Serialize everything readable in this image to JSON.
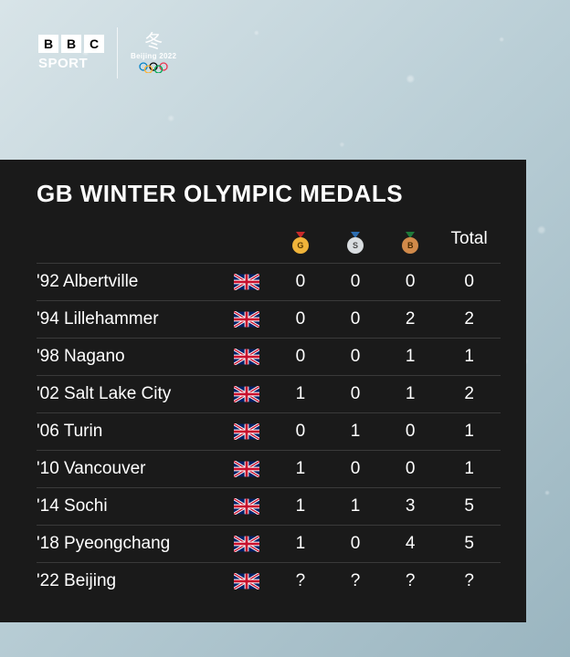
{
  "branding": {
    "bbc_letters": [
      "B",
      "B",
      "C"
    ],
    "sport_label": "SPORT",
    "event_label": "Beijing 2022",
    "rings_colors": [
      "#0081c8",
      "#fcb131",
      "#000000",
      "#00a651",
      "#ee334e"
    ]
  },
  "table": {
    "title": "GB WINTER OLYMPIC MEDALS",
    "columns": {
      "games": "",
      "flag": "",
      "gold": {
        "letter": "G",
        "ribbon_color": "#c92a2a",
        "disc_color": "#f0b43a",
        "text_color": "#5a3b00"
      },
      "silver": {
        "letter": "S",
        "ribbon_color": "#2b6cb0",
        "disc_color": "#d9dde0",
        "text_color": "#4a4a4a"
      },
      "bronze": {
        "letter": "B",
        "ribbon_color": "#1f7a3a",
        "disc_color": "#d18a4a",
        "text_color": "#4a2a00"
      },
      "total": "Total"
    },
    "rows": [
      {
        "games": "'92 Albertville",
        "gold": "0",
        "silver": "0",
        "bronze": "0",
        "total": "0"
      },
      {
        "games": "'94 Lillehammer",
        "gold": "0",
        "silver": "0",
        "bronze": "2",
        "total": "2"
      },
      {
        "games": "'98 Nagano",
        "gold": "0",
        "silver": "0",
        "bronze": "1",
        "total": "1"
      },
      {
        "games": "'02 Salt Lake City",
        "gold": "1",
        "silver": "0",
        "bronze": "1",
        "total": "2"
      },
      {
        "games": "'06 Turin",
        "gold": "0",
        "silver": "1",
        "bronze": "0",
        "total": "1"
      },
      {
        "games": "'10 Vancouver",
        "gold": "1",
        "silver": "0",
        "bronze": "0",
        "total": "1"
      },
      {
        "games": "'14 Sochi",
        "gold": "1",
        "silver": "1",
        "bronze": "3",
        "total": "5"
      },
      {
        "games": "'18 Pyeongchang",
        "gold": "1",
        "silver": "0",
        "bronze": "4",
        "total": "5"
      },
      {
        "games": "'22 Beijing",
        "gold": "?",
        "silver": "?",
        "bronze": "?",
        "total": "?"
      }
    ],
    "row_border_color": "#3a3a3a",
    "panel_bg": "#1a1a1a",
    "text_color": "#ffffff",
    "title_fontsize": 26,
    "cell_fontsize": 19
  },
  "background": {
    "gradient_start": "#d8e4e8",
    "gradient_mid": "#b8cdd5",
    "gradient_end": "#9ab5c0"
  },
  "flag": {
    "country": "GB",
    "base": "#012169",
    "white": "#ffffff",
    "red": "#c8102e"
  }
}
